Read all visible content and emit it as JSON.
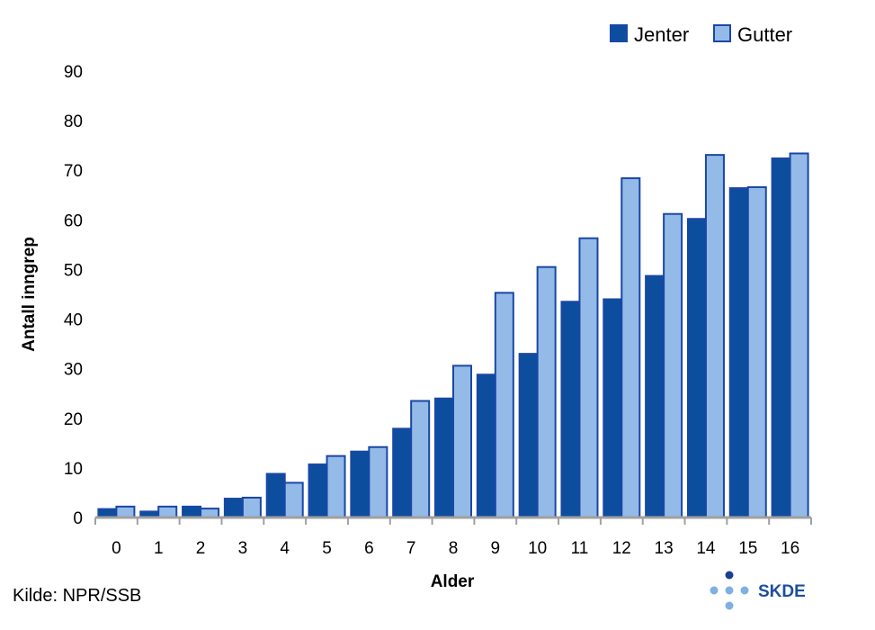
{
  "chart_data": {
    "type": "bar",
    "categories": [
      "0",
      "1",
      "2",
      "3",
      "4",
      "5",
      "6",
      "7",
      "8",
      "9",
      "10",
      "11",
      "12",
      "13",
      "14",
      "15",
      "16"
    ],
    "series": [
      {
        "name": "Jenter",
        "color": "#0d4d9e",
        "values": [
          1.7,
          1.2,
          2.2,
          3.8,
          8.8,
          10.7,
          13.3,
          17.9,
          24.0,
          28.8,
          33.0,
          43.5,
          44.0,
          48.7,
          60.2,
          66.4,
          72.4
        ]
      },
      {
        "name": "Gutter",
        "color": "#94bbe8",
        "values": [
          2.2,
          2.2,
          1.8,
          4.0,
          7.0,
          12.4,
          14.2,
          23.5,
          30.6,
          45.3,
          50.5,
          56.3,
          68.4,
          61.2,
          73.1,
          66.6,
          73.4
        ]
      }
    ],
    "xlabel": "Alder",
    "ylabel": "Antall inngrep",
    "ylim": [
      0,
      90
    ],
    "yticks": [
      0,
      10,
      20,
      30,
      40,
      50,
      60,
      70,
      80,
      90
    ],
    "grid": false,
    "legend_position": "top-right",
    "bar_border_color": "#1a47a6"
  },
  "source": "Kilde: NPR/SSB",
  "logo": {
    "text": "SKDE",
    "dark_color": "#1b3f8f",
    "light_color": "#7eb0e2"
  }
}
